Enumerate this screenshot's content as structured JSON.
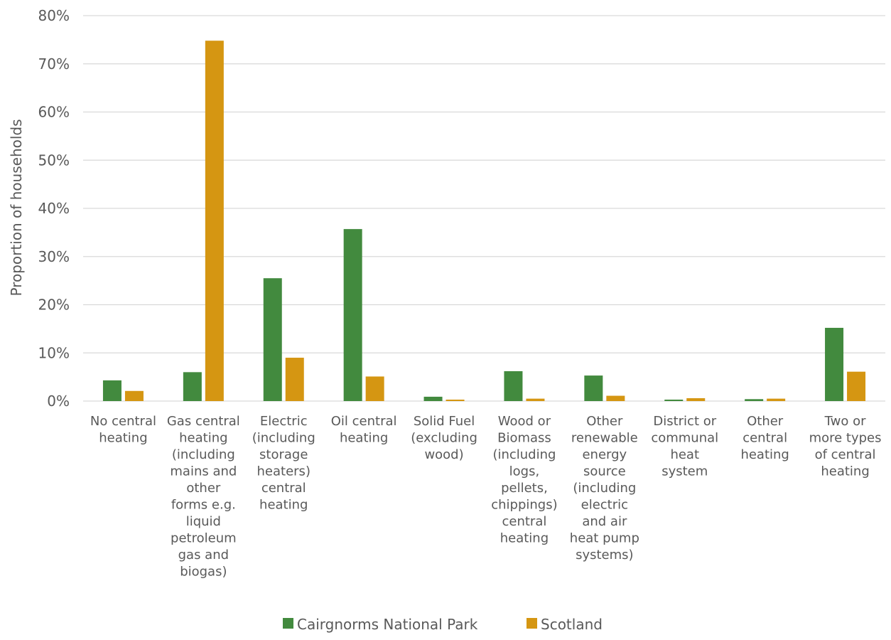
{
  "chart_data": {
    "type": "bar",
    "title": "",
    "xlabel": "",
    "ylabel": "Proportion of households",
    "ylim": [
      0,
      80
    ],
    "y_ticks": [
      "0%",
      "10%",
      "20%",
      "30%",
      "40%",
      "50%",
      "60%",
      "70%",
      "80%"
    ],
    "grid": true,
    "legend": "bottom",
    "categories": [
      [
        "No central",
        "heating"
      ],
      [
        "Gas central",
        "heating",
        "(including",
        "mains and",
        "other",
        "forms e.g.",
        "liquid",
        "petroleum",
        "gas and",
        "biogas)"
      ],
      [
        "Electric",
        "(including",
        "storage",
        "heaters)",
        "central",
        "heating"
      ],
      [
        "Oil central",
        "heating"
      ],
      [
        "Solid Fuel",
        "(excluding",
        "wood)"
      ],
      [
        "Wood or",
        "Biomass",
        "(including",
        "logs,",
        "pellets,",
        "chippings)",
        "central",
        "heating"
      ],
      [
        "Other",
        "renewable",
        "energy",
        "source",
        "(including",
        "electric",
        "and air",
        "heat pump",
        "systems)"
      ],
      [
        "District or",
        "communal",
        "heat",
        "system"
      ],
      [
        "Other",
        "central",
        "heating"
      ],
      [
        "Two or",
        "more types",
        "of central",
        "heating"
      ]
    ],
    "series": [
      {
        "name": "Cairgnorms National Park",
        "color": "#428a3e",
        "values": [
          4.3,
          6.0,
          25.5,
          35.7,
          0.9,
          6.2,
          5.3,
          0.3,
          0.4,
          15.2
        ]
      },
      {
        "name": "Scotland",
        "color": "#d59612",
        "values": [
          2.1,
          74.8,
          9.0,
          5.1,
          0.3,
          0.5,
          1.1,
          0.6,
          0.5,
          6.1
        ]
      }
    ]
  }
}
